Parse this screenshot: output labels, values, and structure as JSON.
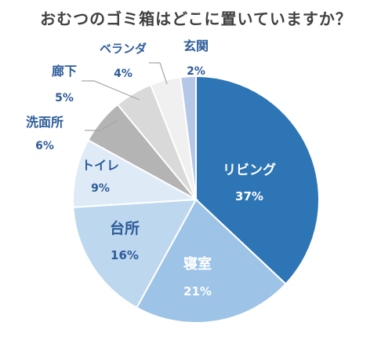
{
  "title": "おむつのゴミ箱はどこに置いていますか？",
  "chart_data": {
    "type": "pie",
    "title": "おむつのゴミ箱はどこに置いていますか？",
    "unit": "%",
    "slices": [
      {
        "label": "リビング",
        "value": 37,
        "display": "37%",
        "color": "#2e75b6"
      },
      {
        "label": "寝室",
        "value": 21,
        "display": "21%",
        "color": "#9dc3e6"
      },
      {
        "label": "台所",
        "value": 16,
        "display": "16%",
        "color": "#bdd7ee"
      },
      {
        "label": "トイレ",
        "value": 9,
        "display": "9%",
        "color": "#deebf7"
      },
      {
        "label": "洗面所",
        "value": 6,
        "display": "6%",
        "color": "#b4b4b4"
      },
      {
        "label": "廊下",
        "value": 5,
        "display": "5%",
        "color": "#d9d9d9"
      },
      {
        "label": "ベランダ",
        "value": 4,
        "display": "4%",
        "color": "#f0f0f0"
      },
      {
        "label": "玄関",
        "value": 2,
        "display": "2%",
        "color": "#b4c7e7"
      }
    ]
  }
}
